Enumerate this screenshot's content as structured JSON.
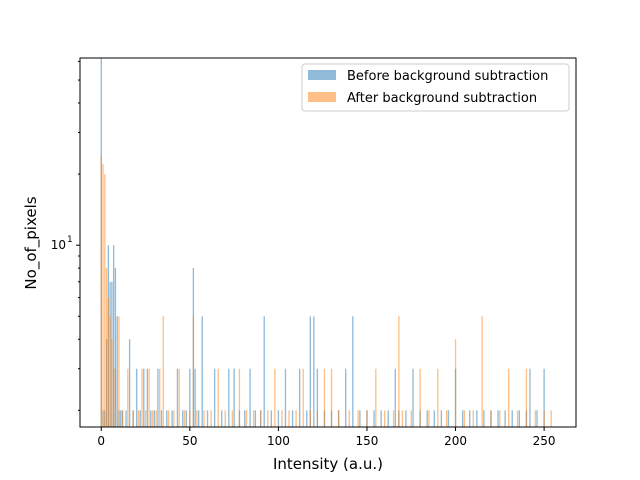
{
  "chart_data": {
    "type": "bar",
    "title": "",
    "xlabel": "Intensity (a.u.)",
    "ylabel": "No_of_pixels",
    "yscale": "log",
    "xlim": [
      -12,
      268
    ],
    "ylim": [
      1.7,
      62
    ],
    "xticks": [
      0,
      50,
      100,
      150,
      200,
      250
    ],
    "yticks": [
      {
        "value": 10,
        "label": "10",
        "exp": "1"
      }
    ],
    "grid": false,
    "legend_position": "top-right",
    "bin_width": 0.75,
    "series": [
      {
        "name": "Before background subtraction",
        "color": "#1f77b4",
        "alpha": 0.5,
        "x": [
          0,
          1,
          2,
          3,
          4,
          5,
          6,
          7,
          8,
          9,
          10,
          11,
          12,
          14,
          16,
          18,
          20,
          22,
          24,
          26,
          28,
          30,
          32,
          34,
          37,
          40,
          43,
          46,
          48,
          50,
          52,
          53,
          55,
          57,
          60,
          64,
          68,
          72,
          75,
          78,
          81,
          84,
          87,
          90,
          92,
          96,
          100,
          104,
          108,
          112,
          116,
          118,
          120,
          122,
          126,
          130,
          134,
          138,
          142,
          146,
          150,
          154,
          158,
          162,
          166,
          168,
          172,
          176,
          180,
          184,
          188,
          192,
          196,
          200,
          204,
          208,
          212,
          216,
          220,
          224,
          228,
          232,
          236,
          240,
          242,
          246,
          250
        ],
        "values": [
          62,
          2,
          2,
          4,
          10,
          7,
          7,
          10,
          8,
          5,
          2,
          2,
          2,
          2,
          4,
          2,
          3,
          2,
          3,
          3,
          2,
          2,
          3,
          2,
          2,
          2,
          3,
          2,
          2,
          3,
          8,
          3,
          2,
          5,
          2,
          3,
          2,
          3,
          3,
          2,
          2,
          3,
          2,
          2,
          5,
          2,
          2,
          3,
          2,
          3,
          2,
          5,
          5,
          3,
          2,
          2,
          2,
          3,
          5,
          2,
          2,
          2,
          2,
          2,
          3,
          2,
          2,
          3,
          2,
          2,
          2,
          2,
          2,
          3,
          2,
          2,
          2,
          2,
          2,
          2,
          2,
          2,
          2,
          2,
          3,
          2,
          3
        ]
      },
      {
        "name": "After background subtraction",
        "color": "#ff7f0e",
        "alpha": 0.5,
        "x": [
          0,
          1,
          2,
          3,
          4,
          5,
          6,
          7,
          8,
          10,
          12,
          15,
          18,
          21,
          23,
          25,
          27,
          29,
          31,
          33,
          35,
          38,
          41,
          44,
          47,
          50,
          52,
          54,
          58,
          62,
          66,
          70,
          74,
          78,
          82,
          86,
          90,
          94,
          98,
          102,
          106,
          110,
          114,
          118,
          122,
          126,
          130,
          134,
          140,
          145,
          150,
          155,
          160,
          165,
          168,
          170,
          175,
          180,
          185,
          190,
          195,
          200,
          205,
          210,
          215,
          220,
          225,
          230,
          235,
          240,
          245,
          250,
          254
        ],
        "values": [
          24,
          22,
          20,
          8,
          6,
          5,
          4,
          3,
          3,
          5,
          2,
          3,
          2,
          2,
          3,
          2,
          3,
          2,
          2,
          3,
          5,
          2,
          2,
          3,
          2,
          2,
          5,
          2,
          2,
          2,
          3,
          2,
          2,
          3,
          2,
          2,
          2,
          2,
          3,
          2,
          2,
          2,
          3,
          2,
          2,
          3,
          3,
          2,
          2,
          2,
          2,
          3,
          2,
          2,
          5,
          2,
          2,
          3,
          2,
          3,
          2,
          4,
          2,
          2,
          5,
          2,
          2,
          3,
          2,
          3,
          2,
          2,
          2
        ]
      }
    ]
  }
}
